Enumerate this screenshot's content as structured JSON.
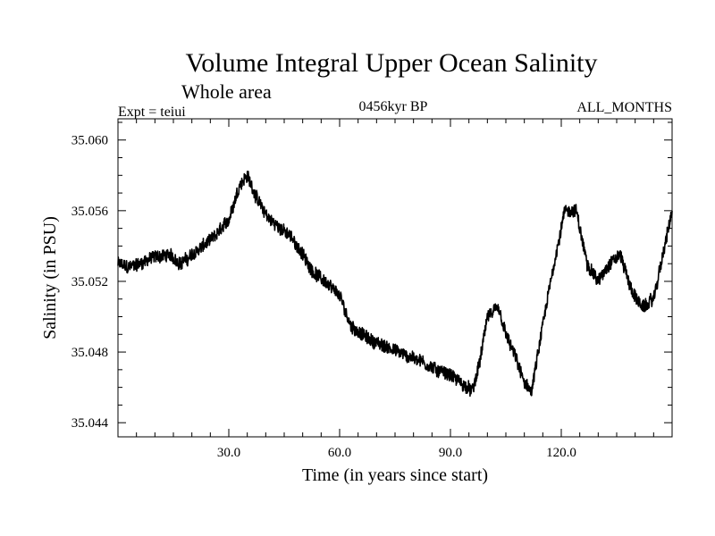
{
  "chart_data": {
    "type": "line",
    "title": "Volume Integral Upper Ocean Salinity",
    "subtitle": "Whole area",
    "experiment": "Expt = teiui",
    "period": "0456kyr BP",
    "months": "ALL_MONTHS",
    "xlabel": "Time (in years since start)",
    "ylabel": "Salinity (in PSU)",
    "xlim": [
      0,
      150
    ],
    "ylim": [
      35.0432,
      35.0612
    ],
    "xticks": [
      30,
      60,
      90,
      120
    ],
    "xtick_labels": [
      "30.0",
      "60.0",
      "90.0",
      "120.0"
    ],
    "yticks": [
      35.044,
      35.048,
      35.052,
      35.056,
      35.06
    ],
    "ytick_labels": [
      "35.044",
      "35.048",
      "35.052",
      "35.056",
      "35.060"
    ],
    "grid": false,
    "series": [
      {
        "name": "salinity",
        "color": "#000000",
        "noise_amplitude": 0.0007,
        "anchors": {
          "x": [
            0,
            3,
            6,
            10,
            14,
            17,
            20,
            23,
            26,
            30,
            33,
            35,
            38,
            41,
            44,
            47,
            50,
            53,
            56,
            60,
            63,
            66,
            70,
            74,
            78,
            82,
            86,
            90,
            93,
            96,
            98,
            100,
            103,
            105,
            108,
            110,
            112,
            115,
            118,
            121,
            124,
            127,
            130,
            133,
            136,
            139,
            142,
            145,
            148,
            150
          ],
          "y": [
            35.053,
            35.0528,
            35.053,
            35.0534,
            35.0535,
            35.053,
            35.0535,
            35.054,
            35.0545,
            35.0555,
            35.0575,
            35.058,
            35.0565,
            35.0555,
            35.055,
            35.0545,
            35.0535,
            35.0525,
            35.052,
            35.0512,
            35.0495,
            35.049,
            35.0485,
            35.0482,
            35.0478,
            35.0475,
            35.047,
            35.0467,
            35.0462,
            35.0458,
            35.0475,
            35.05,
            35.0505,
            35.049,
            35.0475,
            35.0462,
            35.0458,
            35.0495,
            35.053,
            35.056,
            35.056,
            35.053,
            35.052,
            35.053,
            35.0535,
            35.0515,
            35.0505,
            35.051,
            35.054,
            35.056
          ]
        }
      }
    ]
  }
}
